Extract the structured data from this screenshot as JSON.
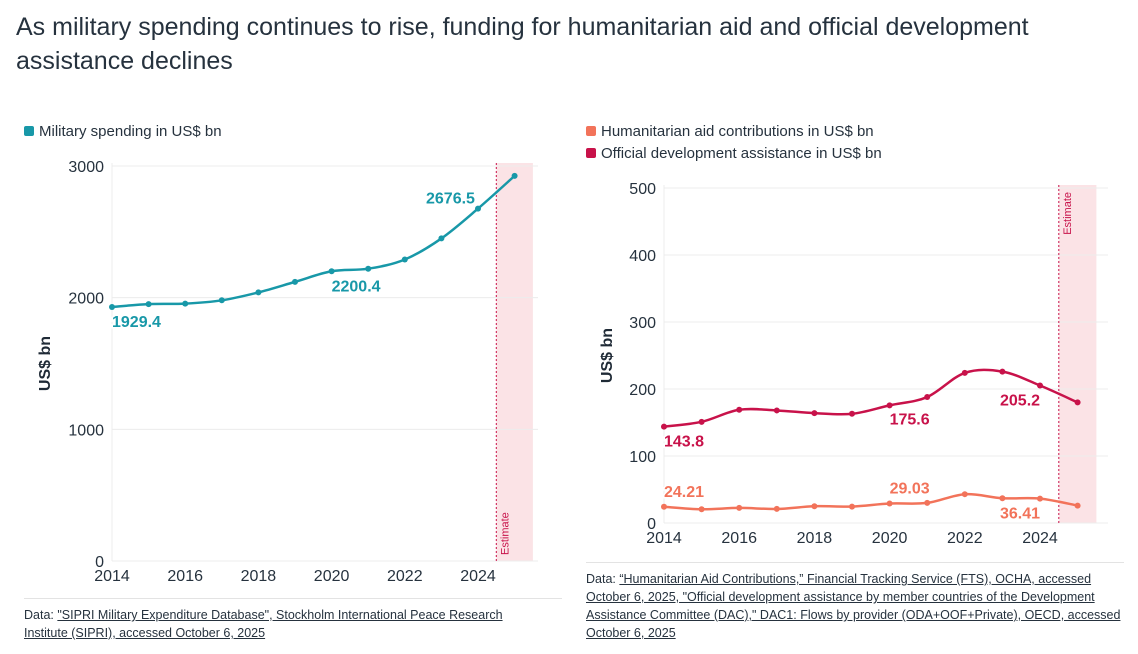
{
  "title": "As military spending continues to rise, funding for humanitarian aid and official development assistance declines",
  "colors": {
    "military": "#1898a8",
    "oda": "#c8124a",
    "humanitarian": "#f2735a",
    "estimate_band": "#fbe3e6",
    "estimate_line": "#c8124a"
  },
  "chart_data": [
    {
      "type": "line",
      "ylabel": "US$ bn",
      "xlim": [
        2014,
        2025.5
      ],
      "ylim": [
        0,
        3000
      ],
      "yticks": [
        0,
        1000,
        2000,
        3000
      ],
      "xticks": [
        2014,
        2016,
        2018,
        2020,
        2022,
        2024
      ],
      "grid": true,
      "legend_placement": "top-left",
      "estimate_label": "Estimate",
      "estimate_from": 2024.5,
      "x": [
        2014,
        2015,
        2016,
        2017,
        2018,
        2019,
        2020,
        2021,
        2022,
        2023,
        2024,
        2025
      ],
      "series": [
        {
          "name": "Military spending in US$ bn",
          "color": "#1898a8",
          "values": [
            1929.4,
            1951,
            1955,
            1980,
            2040,
            2120,
            2200.4,
            2220,
            2290,
            2450,
            2676.5,
            2925
          ],
          "labels": [
            {
              "year": 2014,
              "text": "1929.4"
            },
            {
              "year": 2020,
              "text": "2200.4"
            },
            {
              "year": 2024,
              "text": "2676.5"
            }
          ]
        }
      ],
      "source_prefix": "Data: ",
      "source": "\"SIPRI Military Expenditure Database\", Stockholm International Peace Research Institute (SIPRI), accessed October 6, 2025"
    },
    {
      "type": "line",
      "ylabel": "US$ bn",
      "xlim": [
        2014,
        2025.5
      ],
      "ylim": [
        0,
        500
      ],
      "yticks": [
        0,
        100,
        200,
        300,
        400,
        500
      ],
      "xticks": [
        2014,
        2016,
        2018,
        2020,
        2022,
        2024
      ],
      "grid": true,
      "legend_placement": "top-left",
      "estimate_label": "Estimate",
      "estimate_from": 2024.5,
      "x": [
        2014,
        2015,
        2016,
        2017,
        2018,
        2019,
        2020,
        2021,
        2022,
        2023,
        2024,
        2025
      ],
      "series": [
        {
          "name": "Humanitarian aid contributions in US$ bn",
          "color": "#f2735a",
          "values": [
            24.21,
            20.5,
            22.5,
            21,
            25,
            24.5,
            29.03,
            30,
            43,
            37,
            36.41,
            26
          ],
          "labels": [
            {
              "year": 2014,
              "text": "24.21"
            },
            {
              "year": 2020,
              "text": "29.03"
            },
            {
              "year": 2024,
              "text": "36.41"
            }
          ]
        },
        {
          "name": "Official development assistance in US$ bn",
          "color": "#c8124a",
          "values": [
            143.8,
            151,
            169,
            168,
            164,
            163,
            175.6,
            188,
            224,
            226,
            205.2,
            180
          ],
          "labels": [
            {
              "year": 2014,
              "text": "143.8"
            },
            {
              "year": 2020,
              "text": "175.6"
            },
            {
              "year": 2024,
              "text": "205.2"
            }
          ]
        }
      ],
      "source_prefix": "Data: ",
      "source": "“Humanitarian Aid Contributions,” Financial Tracking Service (FTS), OCHA, accessed October 6, 2025, \"Official development assistance by member countries of the Development Assistance Committee (DAC),\" DAC1: Flows by provider (ODA+OOF+Private), OECD, accessed October 6, 2025"
    }
  ]
}
